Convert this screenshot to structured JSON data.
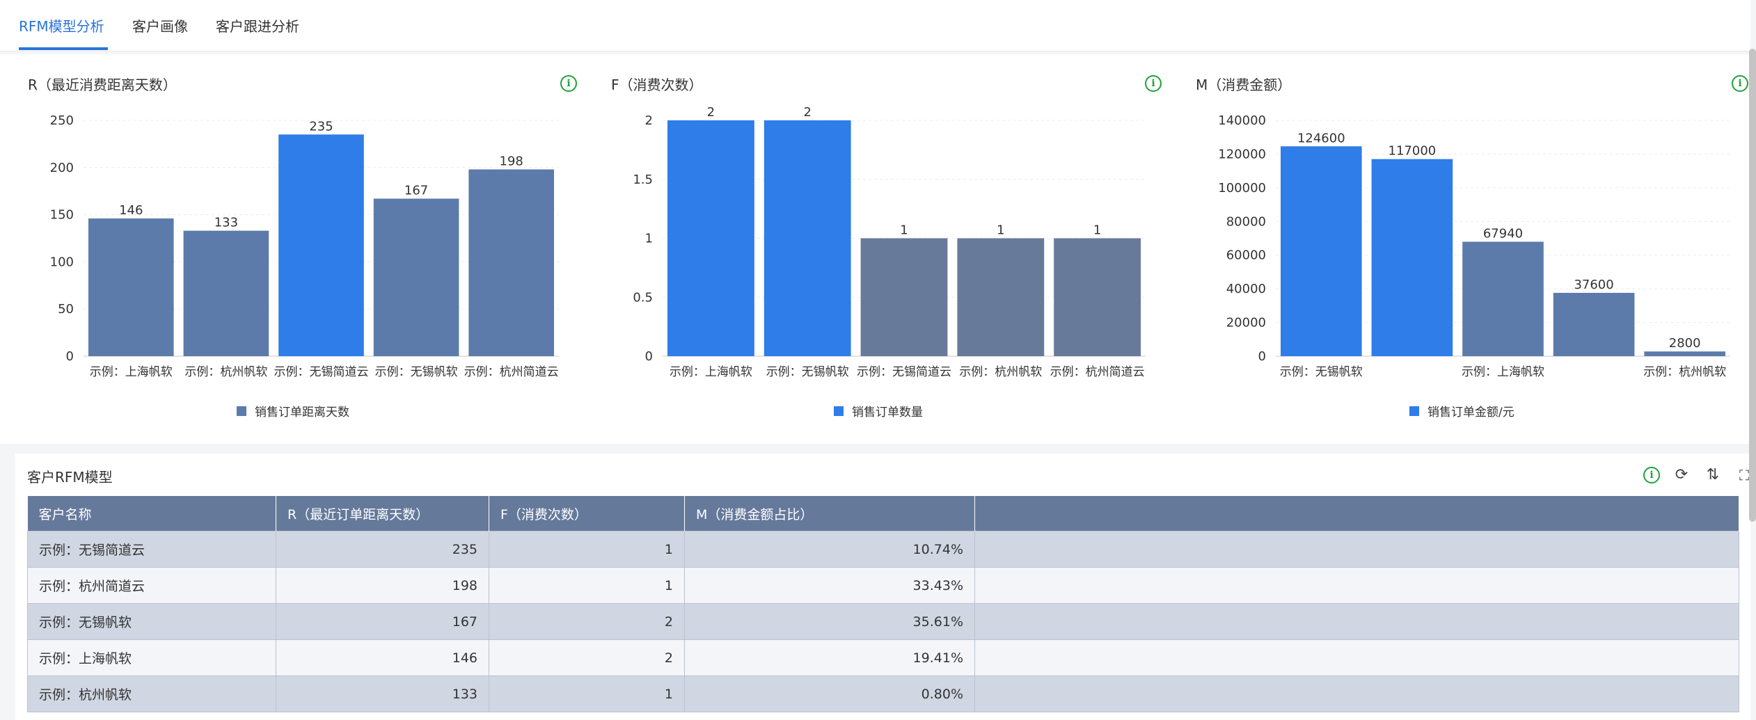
{
  "tabs": [
    {
      "label": "RFM模型分析",
      "active": true
    },
    {
      "label": "客户画像",
      "active": false
    },
    {
      "label": "客户跟进分析",
      "active": false
    }
  ],
  "colors": {
    "accent": "#2a74d9",
    "bar_blue": "#2e7de9",
    "bar_slate": "#5c7bab",
    "bar_slate2": "#677a99",
    "info_green": "#1fa13a",
    "header_bg": "#65799b"
  },
  "charts": {
    "r": {
      "title": "R（最近消费距离天数）",
      "legend": "销售订单距离天数"
    },
    "f": {
      "title": "F（消费次数）",
      "legend": "销售订单数量"
    },
    "m": {
      "title": "M（消费金额）",
      "legend": "销售订单金额/元"
    }
  },
  "chart_data": [
    {
      "type": "bar",
      "title": "R（最近消费距离天数）",
      "categories": [
        "示例：上海帆软",
        "示例：杭州帆软",
        "示例：无锡简道云",
        "示例：无锡帆软",
        "示例：杭州简道云"
      ],
      "series": [
        {
          "name": "销售订单距离天数",
          "values": [
            146,
            133,
            235,
            167,
            198
          ]
        }
      ],
      "highlight_index": 2,
      "y_ticks": [
        "0",
        "50",
        "100",
        "150",
        "200",
        "250"
      ],
      "ylim": [
        0,
        250
      ],
      "legend_position": "bottom"
    },
    {
      "type": "bar",
      "title": "F（消费次数）",
      "categories": [
        "示例：上海帆软",
        "示例：无锡帆软",
        "示例：无锡简道云",
        "示例：杭州帆软",
        "示例：杭州简道云"
      ],
      "series": [
        {
          "name": "销售订单数量",
          "values": [
            2,
            2,
            1,
            1,
            1
          ]
        }
      ],
      "y_ticks": [
        "0",
        "0.5",
        "1",
        "1.5",
        "2"
      ],
      "ylim": [
        0,
        2
      ],
      "legend_position": "bottom"
    },
    {
      "type": "bar",
      "title": "M（消费金额）",
      "categories": [
        "示例：无锡帆软",
        "",
        "示例：上海帆软",
        "",
        "示例：杭州帆软"
      ],
      "series": [
        {
          "name": "销售订单金额/元",
          "values": [
            124600,
            117000,
            67940,
            37600,
            2800
          ]
        }
      ],
      "y_ticks": [
        "0",
        "20000",
        "40000",
        "60000",
        "80000",
        "100000",
        "120000",
        "140000"
      ],
      "ylim": [
        0,
        140000
      ],
      "legend_position": "bottom"
    }
  ],
  "table": {
    "title": "客户RFM模型",
    "columns": [
      "客户名称",
      "R（最近订单距离天数）",
      "F（消费次数）",
      "M（消费金额占比）",
      ""
    ],
    "rows": [
      [
        "示例：无锡简道云",
        "235",
        "1",
        "10.74%",
        ""
      ],
      [
        "示例：杭州简道云",
        "198",
        "1",
        "33.43%",
        ""
      ],
      [
        "示例：无锡帆软",
        "167",
        "2",
        "35.61%",
        ""
      ],
      [
        "示例：上海帆软",
        "146",
        "2",
        "19.41%",
        ""
      ],
      [
        "示例：杭州帆软",
        "133",
        "1",
        "0.80%",
        ""
      ]
    ]
  },
  "icons": {
    "info": "i",
    "refresh": "⟳",
    "sort": "⇅",
    "fullscreen": "⛶"
  }
}
